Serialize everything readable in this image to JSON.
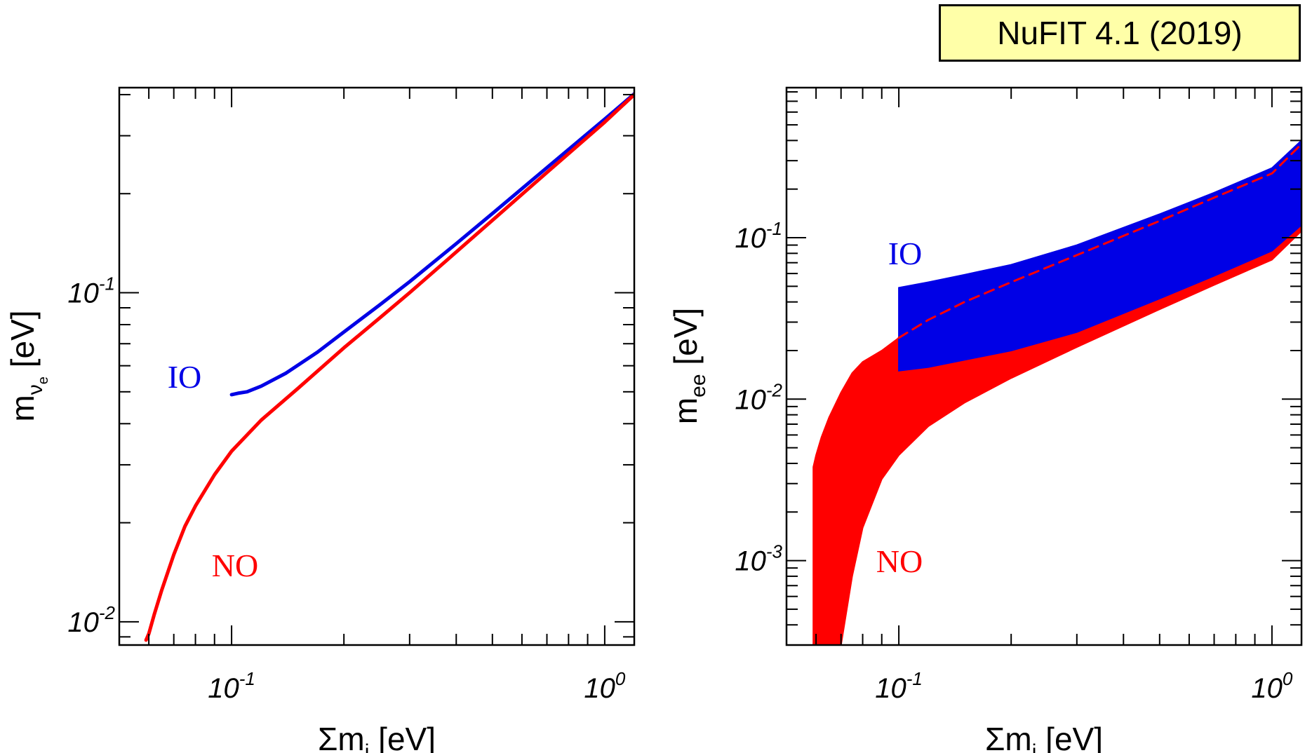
{
  "badge": {
    "text": "NuFIT 4.1 (2019)",
    "background": "#ffffa8"
  },
  "colors": {
    "NO": "#ff0000",
    "IO": "#0000e6"
  },
  "chart_data": [
    {
      "type": "line",
      "xscale": "log",
      "yscale": "log",
      "xlim": [
        0.05,
        1.2
      ],
      "ylim": [
        0.0085,
        0.42
      ],
      "xlabel_main": "Σm",
      "xlabel_sub": "i",
      "xlabel_unit": " [eV]",
      "ylabel_main": "m",
      "ylabel_sub": "ν",
      "ylabel_subsub": "e",
      "ylabel_unit": " [eV]",
      "xticks": [
        {
          "base": "10",
          "exp": "-1",
          "value": 0.1
        },
        {
          "base": "10",
          "exp": "0",
          "value": 1
        }
      ],
      "yticks": [
        {
          "base": "10",
          "exp": "-2",
          "value": 0.01
        },
        {
          "base": "10",
          "exp": "-1",
          "value": 0.1
        }
      ],
      "series": [
        {
          "name": "IO",
          "x": [
            0.1,
            0.104,
            0.11,
            0.12,
            0.14,
            0.17,
            0.2,
            0.25,
            0.3,
            0.4,
            0.5,
            0.7,
            1.0,
            1.2
          ],
          "y": [
            0.049,
            0.0495,
            0.05,
            0.052,
            0.057,
            0.066,
            0.076,
            0.092,
            0.108,
            0.141,
            0.174,
            0.24,
            0.337,
            0.402
          ]
        },
        {
          "name": "NO",
          "x": [
            0.059,
            0.06,
            0.062,
            0.065,
            0.07,
            0.075,
            0.08,
            0.09,
            0.1,
            0.12,
            0.15,
            0.2,
            0.25,
            0.3,
            0.4,
            0.5,
            0.7,
            1.0,
            1.2
          ],
          "y": [
            0.0088,
            0.0092,
            0.0105,
            0.0125,
            0.016,
            0.0195,
            0.0225,
            0.028,
            0.033,
            0.041,
            0.051,
            0.068,
            0.084,
            0.1,
            0.133,
            0.166,
            0.232,
            0.33,
            0.4
          ]
        }
      ]
    },
    {
      "type": "area",
      "xscale": "log",
      "yscale": "log",
      "xlim": [
        0.05,
        1.2
      ],
      "ylim": [
        0.0003,
        0.85
      ],
      "xlabel_main": "Σm",
      "xlabel_sub": "i",
      "xlabel_unit": " [eV]",
      "ylabel_main": "m",
      "ylabel_sub": "ee",
      "ylabel_unit": " [eV]",
      "xticks": [
        {
          "base": "10",
          "exp": "-1",
          "value": 0.1
        },
        {
          "base": "10",
          "exp": "0",
          "value": 1
        }
      ],
      "yticks": [
        {
          "base": "10",
          "exp": "-3",
          "value": 0.001
        },
        {
          "base": "10",
          "exp": "-2",
          "value": 0.01
        },
        {
          "base": "10",
          "exp": "-1",
          "value": 0.1
        }
      ],
      "series": [
        {
          "name": "NO",
          "x": [
            0.059,
            0.06,
            0.062,
            0.065,
            0.07,
            0.075,
            0.08,
            0.09,
            0.1,
            0.12,
            0.15,
            0.2,
            0.3,
            0.5,
            0.7,
            1.0,
            1.2
          ],
          "upper": [
            0.0038,
            0.0045,
            0.0058,
            0.0077,
            0.011,
            0.0145,
            0.017,
            0.02,
            0.024,
            0.03,
            0.038,
            0.05,
            0.074,
            0.121,
            0.169,
            0.241,
            0.29
          ],
          "lower": [
            0.0003,
            0.0003,
            0.0003,
            0.0003,
            0.0003,
            0.0008,
            0.0016,
            0.0032,
            0.0045,
            0.0068,
            0.0095,
            0.0135,
            0.021,
            0.036,
            0.051,
            0.073,
            0.11
          ]
        },
        {
          "name": "IO",
          "x": [
            0.1,
            0.12,
            0.15,
            0.2,
            0.3,
            0.5,
            0.7,
            1.0,
            1.2
          ],
          "upper": [
            0.049,
            0.053,
            0.059,
            0.068,
            0.09,
            0.14,
            0.19,
            0.27,
            0.4
          ],
          "lower": [
            0.015,
            0.0158,
            0.0175,
            0.02,
            0.026,
            0.042,
            0.058,
            0.083,
            0.12
          ]
        },
        {
          "name": "",
          "style": "dashed",
          "x": [
            0.1,
            0.12,
            0.15,
            0.2,
            0.3,
            0.5,
            0.7,
            1.0,
            1.2
          ],
          "y": [
            0.024,
            0.031,
            0.04,
            0.053,
            0.078,
            0.127,
            0.177,
            0.25,
            0.38
          ]
        }
      ]
    }
  ]
}
